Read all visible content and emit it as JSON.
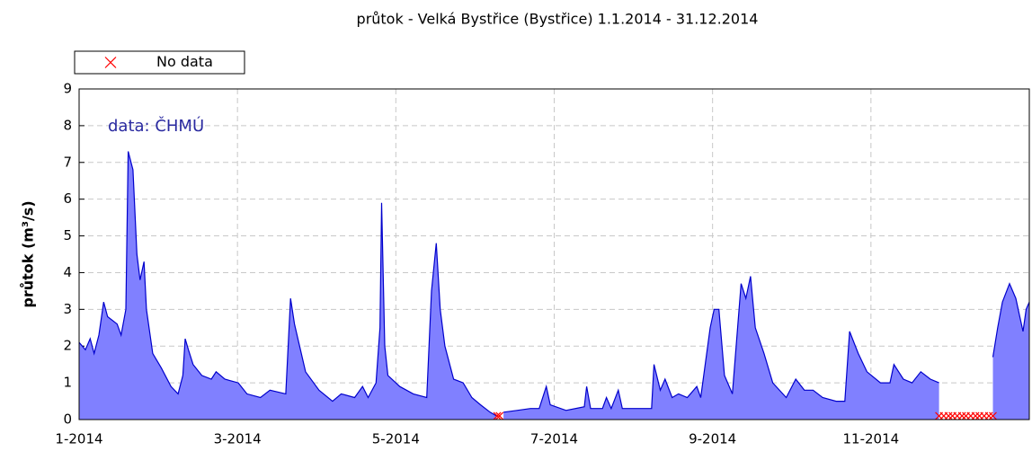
{
  "chart_data": {
    "type": "area",
    "title": "průtok - Velká Bystřice (Bystřice) 1.1.2014 - 31.12.2014",
    "y_label": "průtok (m³/s)",
    "annotation": "data: ČHMÚ",
    "xlim": [
      1,
      13
    ],
    "xticks": [
      {
        "value": 1,
        "label": "1-2014"
      },
      {
        "value": 3,
        "label": "3-2014"
      },
      {
        "value": 5,
        "label": "5-2014"
      },
      {
        "value": 7,
        "label": "7-2014"
      },
      {
        "value": 9,
        "label": "9-2014"
      },
      {
        "value": 11,
        "label": "11-2014"
      }
    ],
    "ylim": [
      0,
      9
    ],
    "yticks": [
      0,
      1,
      2,
      3,
      4,
      5,
      6,
      7,
      8,
      9
    ],
    "grid": true,
    "legend": "top-left",
    "series": [
      {
        "color": "#0000cc",
        "fill": "#8080ff",
        "x": [
          1.0,
          1.08,
          1.14,
          1.19,
          1.25,
          1.31,
          1.36,
          1.48,
          1.53,
          1.59,
          1.62,
          1.68,
          1.73,
          1.77,
          1.82,
          1.85,
          1.93,
          2.04,
          2.16,
          2.25,
          2.31,
          2.34,
          2.38,
          2.44,
          2.55,
          2.67,
          2.73,
          2.84,
          3.01,
          3.12,
          3.29,
          3.41,
          3.61,
          3.67,
          3.72,
          3.86,
          4.03,
          4.2,
          4.31,
          4.48,
          4.58,
          4.65,
          4.75,
          4.8,
          4.82,
          4.86,
          4.9,
          5.05,
          5.22,
          5.39,
          5.45,
          5.51,
          5.56,
          5.62,
          5.73,
          5.85,
          5.96,
          6.07,
          6.19,
          6.27,
          6.3,
          6.36,
          6.53,
          6.7,
          6.81,
          6.9,
          6.95,
          7.15,
          7.38,
          7.41,
          7.46,
          7.61,
          7.66,
          7.72,
          7.81,
          7.86,
          8.06,
          8.23,
          8.26,
          8.34,
          8.4,
          8.49,
          8.57,
          8.68,
          8.8,
          8.85,
          8.97,
          9.02,
          9.08,
          9.15,
          9.25,
          9.36,
          9.42,
          9.48,
          9.54,
          9.65,
          9.76,
          9.93,
          10.05,
          10.16,
          10.27,
          10.39,
          10.56,
          10.67,
          10.73,
          10.84,
          10.95,
          11.12,
          11.24,
          11.29,
          11.41,
          11.52,
          11.63,
          11.75,
          11.86,
          11.9,
          12.54,
          12.6,
          12.66,
          12.75,
          12.83,
          12.92,
          12.96,
          13.0
        ],
        "values": [
          2.1,
          1.9,
          2.2,
          1.8,
          2.3,
          3.2,
          2.8,
          2.6,
          2.3,
          3.0,
          7.3,
          6.8,
          4.5,
          3.8,
          4.3,
          3.0,
          1.8,
          1.4,
          0.9,
          0.7,
          1.2,
          2.2,
          1.9,
          1.5,
          1.2,
          1.1,
          1.3,
          1.1,
          1.0,
          0.7,
          0.6,
          0.8,
          0.7,
          3.3,
          2.6,
          1.3,
          0.8,
          0.5,
          0.7,
          0.6,
          0.9,
          0.6,
          1.0,
          2.5,
          5.9,
          2.0,
          1.2,
          0.9,
          0.7,
          0.6,
          3.5,
          4.8,
          3.0,
          2.0,
          1.1,
          1.0,
          0.6,
          0.4,
          0.2,
          0.1,
          null,
          0.2,
          0.25,
          0.3,
          0.3,
          0.9,
          0.4,
          0.25,
          0.35,
          0.9,
          0.3,
          0.3,
          0.6,
          0.3,
          0.8,
          0.3,
          0.3,
          0.3,
          1.5,
          0.8,
          1.1,
          0.6,
          0.7,
          0.6,
          0.9,
          0.6,
          2.5,
          3.0,
          3.0,
          1.2,
          0.7,
          3.7,
          3.3,
          3.9,
          2.5,
          1.8,
          1.0,
          0.6,
          1.1,
          0.8,
          0.8,
          0.6,
          0.5,
          0.5,
          2.4,
          1.8,
          1.3,
          1.0,
          1.0,
          1.5,
          1.1,
          1.0,
          1.3,
          1.1,
          1.0,
          null,
          1.7,
          2.5,
          3.2,
          3.7,
          3.3,
          2.4,
          3.0,
          3.2
        ]
      },
      {
        "name": "No data",
        "color": "#ff0000",
        "marker": "x",
        "x": [
          6.28,
          6.31,
          11.86,
          11.92,
          11.98,
          12.03,
          12.09,
          12.15,
          12.2,
          12.26,
          12.32,
          12.37,
          12.43,
          12.49,
          12.54
        ],
        "values": [
          0.1,
          0.1,
          0.1,
          0.1,
          0.1,
          0.1,
          0.1,
          0.1,
          0.1,
          0.1,
          0.1,
          0.1,
          0.1,
          0.1,
          0.1
        ]
      }
    ]
  }
}
